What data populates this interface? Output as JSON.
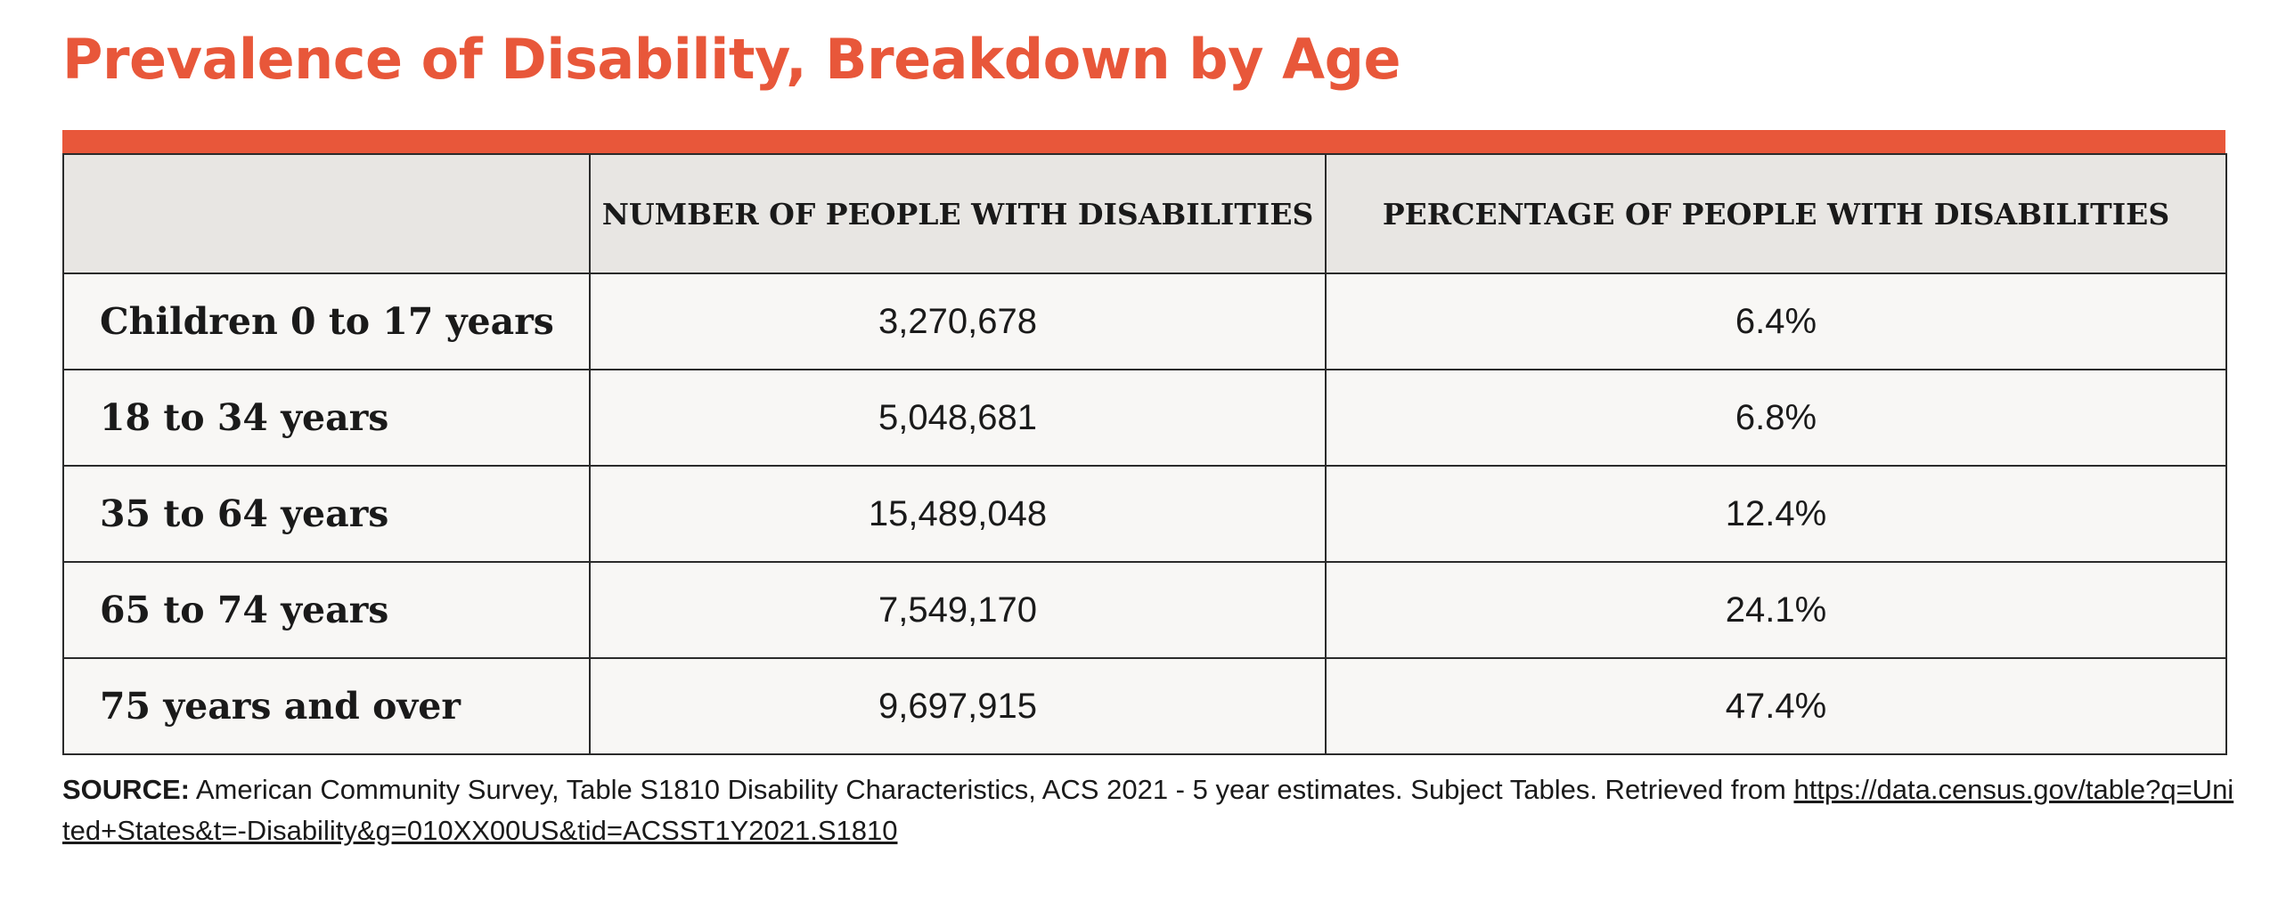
{
  "page": {
    "title": "Prevalence of Disability, Breakdown by Age",
    "accent_color": "#e8573a",
    "header_bg_color": "#e8e6e3",
    "row_bg_color": "#f8f7f5"
  },
  "table": {
    "headers": [
      "",
      "NUMBER OF PEOPLE WITH DISABILITIES",
      "PERCENTAGE OF PEOPLE WITH DISABILITIES"
    ],
    "rows": [
      {
        "label": "Children 0 to 17 years",
        "number": "3,270,678",
        "percentage": "6.4%"
      },
      {
        "label": "18 to 34 years",
        "number": "5,048,681",
        "percentage": "6.8%"
      },
      {
        "label": "35 to 64 years",
        "number": "15,489,048",
        "percentage": "12.4%"
      },
      {
        "label": "65 to 74 years",
        "number": "7,549,170",
        "percentage": "24.1%"
      },
      {
        "label": "75 years and over",
        "number": "9,697,915",
        "percentage": "47.4%"
      }
    ]
  },
  "source": {
    "label": "SOURCE:",
    "text": " American Community Survey, Table S1810 Disability Characteristics, ACS 2021 - 5 year estimates. Subject Tables. Retrieved from ",
    "link": "https://data.census.gov/table?q=United+States&t=-Disability&g=010XX00US&tid=ACSST1Y2021.S1810"
  }
}
